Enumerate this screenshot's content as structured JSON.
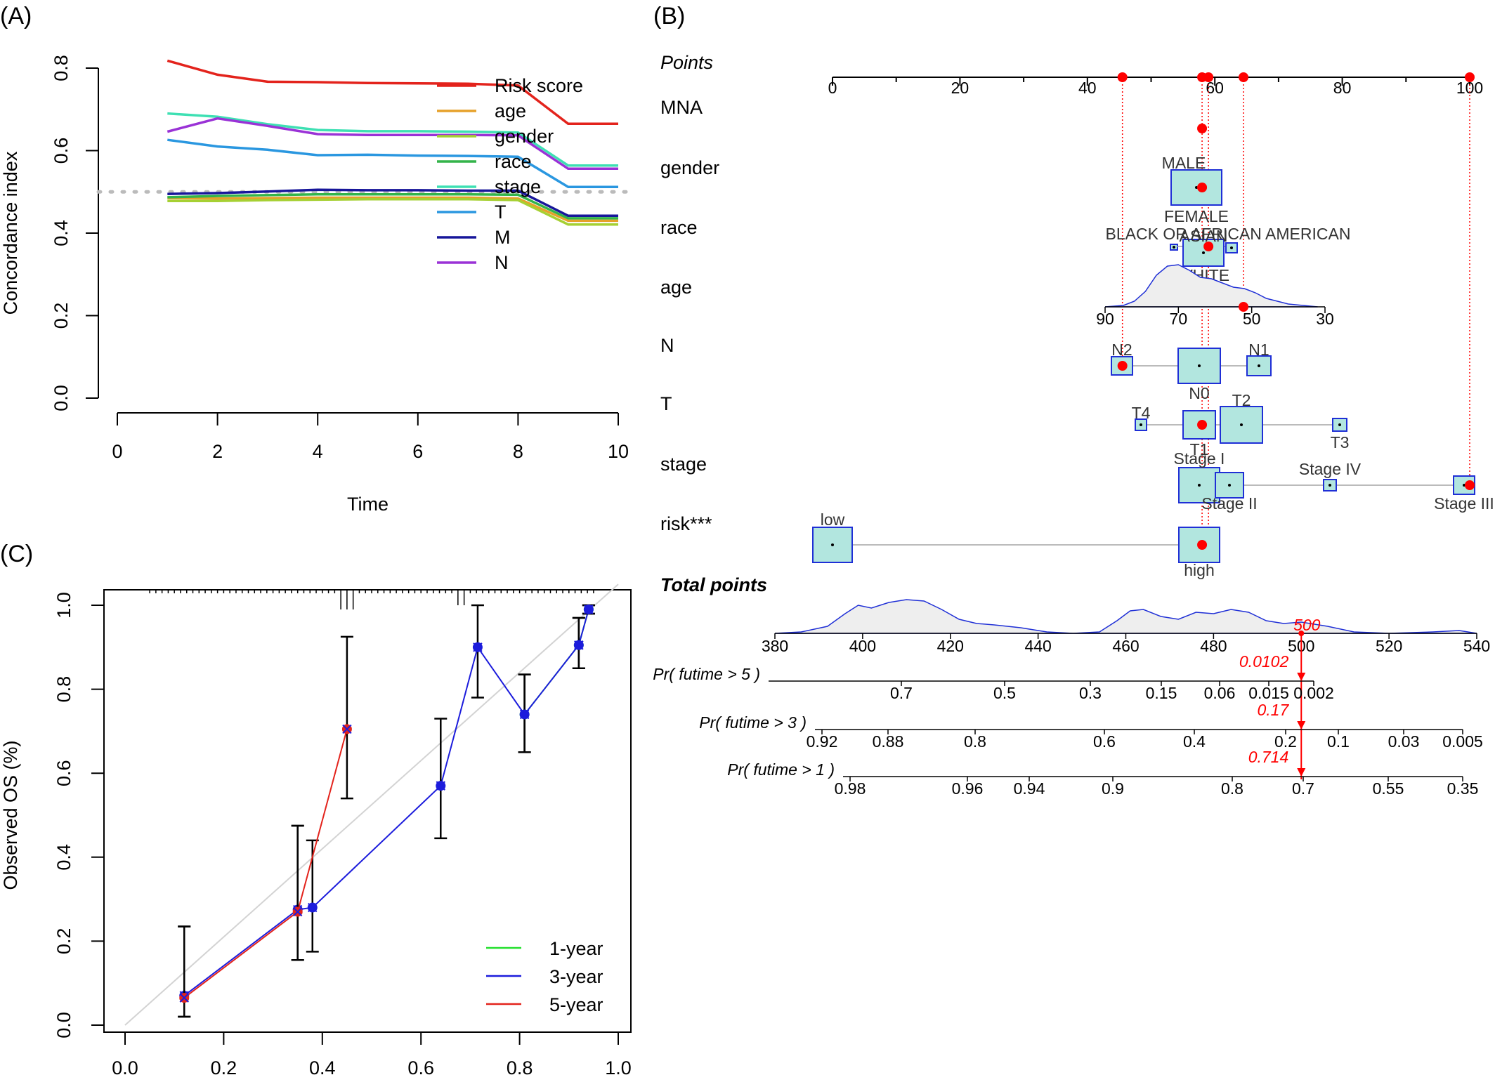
{
  "panel_labels": {
    "a": "(A)",
    "b": "(B)",
    "c": "(C)"
  },
  "chart_data": [
    {
      "panel": "(A)",
      "type": "line",
      "xlabel": "Time",
      "ylabel": "Concordance index",
      "xlim": [
        0,
        10
      ],
      "ylim": [
        0,
        0.8
      ],
      "xticks": [
        "0",
        "2",
        "4",
        "6",
        "8",
        "10"
      ],
      "yticks": [
        "0.0",
        "0.2",
        "0.4",
        "0.6",
        "0.8"
      ],
      "reference_line": 0.5,
      "legend_position": "top-right",
      "x": [
        1,
        2,
        3,
        4,
        5,
        6,
        7,
        8,
        9,
        10
      ],
      "series": [
        {
          "name": "Risk score",
          "color": "#e3231c",
          "values": [
            0.818,
            0.784,
            0.767,
            0.766,
            0.764,
            0.763,
            0.762,
            0.758,
            0.665,
            0.665
          ]
        },
        {
          "name": "age",
          "color": "#e6a12a",
          "values": [
            0.485,
            0.484,
            0.485,
            0.486,
            0.486,
            0.486,
            0.486,
            0.484,
            0.43,
            0.43
          ]
        },
        {
          "name": "gender",
          "color": "#a6d033",
          "values": [
            0.478,
            0.478,
            0.48,
            0.481,
            0.482,
            0.482,
            0.482,
            0.48,
            0.421,
            0.421
          ]
        },
        {
          "name": "race",
          "color": "#33b44a",
          "values": [
            0.487,
            0.49,
            0.492,
            0.494,
            0.494,
            0.494,
            0.494,
            0.493,
            0.436,
            0.436
          ]
        },
        {
          "name": "stage",
          "color": "#3ee0b3",
          "values": [
            0.69,
            0.682,
            0.664,
            0.65,
            0.647,
            0.647,
            0.646,
            0.644,
            0.564,
            0.564
          ]
        },
        {
          "name": "T",
          "color": "#2a97e0",
          "values": [
            0.626,
            0.61,
            0.602,
            0.589,
            0.59,
            0.588,
            0.587,
            0.585,
            0.512,
            0.512
          ]
        },
        {
          "name": "M",
          "color": "#17169a",
          "values": [
            0.495,
            0.497,
            0.501,
            0.505,
            0.504,
            0.504,
            0.503,
            0.503,
            0.442,
            0.442
          ]
        },
        {
          "name": "N",
          "color": "#9a32d6",
          "values": [
            0.646,
            0.678,
            0.66,
            0.64,
            0.638,
            0.638,
            0.638,
            0.637,
            0.556,
            0.556
          ]
        }
      ]
    },
    {
      "panel": "(B)",
      "type": "nomogram",
      "points_label": "Points",
      "points_ticks": [
        "0",
        "20",
        "40",
        "60",
        "80",
        "100"
      ],
      "selected_points": [
        45.5,
        58,
        59,
        64.5,
        100
      ],
      "variables": [
        {
          "label": "MNA",
          "points": 58
        },
        {
          "label": "gender",
          "levels": [
            "MALE",
            "FEMALE"
          ],
          "points": 58
        },
        {
          "label": "race",
          "levels": [
            "BLACK OR AFRICAN AMERICAN",
            "ASIAN",
            "WHITE"
          ],
          "points": 59
        },
        {
          "label": "age",
          "axis_ticks": [
            "90",
            "70",
            "50",
            "30"
          ],
          "points": 64.5
        },
        {
          "label": "N",
          "levels": [
            "N2",
            "N0",
            "N1"
          ],
          "points": 45.5
        },
        {
          "label": "T",
          "levels": [
            "T4",
            "T1",
            "T2",
            "T3"
          ],
          "points": 58
        },
        {
          "label": "stage",
          "levels": [
            "Stage I",
            "Stage II",
            "Stage IV",
            "Stage III"
          ],
          "points": 100
        },
        {
          "label": "risk***",
          "levels": [
            "low",
            "high"
          ],
          "points": 58
        }
      ],
      "total_points": {
        "label": "Total points",
        "ticks": [
          "380",
          "400",
          "420",
          "440",
          "460",
          "480",
          "500",
          "520",
          "540"
        ],
        "value_label": "500"
      },
      "predictions": [
        {
          "label": "Pr( futime > 5 )",
          "ticks": [
            "0.7",
            "0.5",
            "0.3",
            "0.15",
            "0.06",
            "0.015",
            "0.002"
          ],
          "value_label": "0.0102"
        },
        {
          "label": "Pr( futime > 3 )",
          "ticks": [
            "0.92",
            "0.88",
            "0.8",
            "0.6",
            "0.4",
            "0.2",
            "0.1",
            "0.03",
            "0.005"
          ],
          "value_label": "0.17"
        },
        {
          "label": "Pr( futime > 1 )",
          "ticks": [
            "0.98",
            "0.96",
            "0.94",
            "0.9",
            "0.8",
            "0.7",
            "0.55",
            "0.35"
          ],
          "value_label": "0.714"
        }
      ],
      "colors": {
        "point": "#ff0000",
        "box_fill": "#b2e6df",
        "box_stroke": "#1f2fd6",
        "density": "#1f2fd6",
        "density_fill": "#eeeeee"
      }
    },
    {
      "panel": "(C)",
      "type": "scatter",
      "ylabel": "Observed OS (%)",
      "xlabel": "",
      "xlim": [
        0,
        1
      ],
      "ylim": [
        0,
        1
      ],
      "xticks": [
        "0.0",
        "0.2",
        "0.4",
        "0.6",
        "0.8",
        "1.0"
      ],
      "yticks": [
        "0.0",
        "0.2",
        "0.4",
        "0.6",
        "0.8",
        "1.0"
      ],
      "legend_position": "bottom-right",
      "series": [
        {
          "name": "1-year",
          "color": "#23e02d",
          "x": [
            0.81,
            0.92,
            0.94
          ],
          "y": [
            0.74,
            0.905,
            0.99
          ],
          "ci_low": [
            0.65,
            0.85,
            0.98
          ],
          "ci_high": [
            0.835,
            0.97,
            1.0
          ]
        },
        {
          "name": "3-year",
          "color": "#1c1cdc",
          "x": [
            0.12,
            0.35,
            0.38,
            0.64,
            0.715,
            0.81,
            0.92,
            0.94
          ],
          "y": [
            0.07,
            0.275,
            0.28,
            0.57,
            0.9,
            0.74,
            0.905,
            0.99
          ],
          "ci_low": [
            0.02,
            0.155,
            0.175,
            0.445,
            0.78,
            0.65,
            0.85,
            0.98
          ],
          "ci_high": [
            0.235,
            0.475,
            0.44,
            0.73,
            1.0,
            0.835,
            0.97,
            1.0
          ]
        },
        {
          "name": "5-year",
          "color": "#e3231c",
          "x": [
            0.12,
            0.35,
            0.45
          ],
          "y": [
            0.065,
            0.27,
            0.705
          ],
          "ci_low": [
            0.02,
            0.155,
            0.54
          ],
          "ci_high": [
            0.235,
            0.475,
            0.925
          ]
        }
      ]
    }
  ]
}
